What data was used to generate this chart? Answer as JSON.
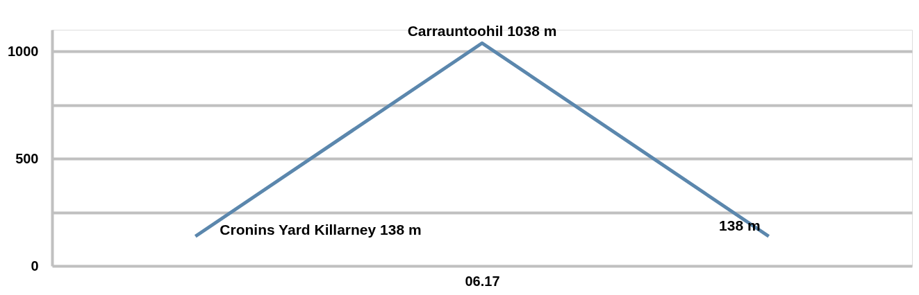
{
  "chart_data": {
    "type": "line",
    "categories": [
      null,
      "06.17",
      null
    ],
    "series": [
      {
        "color": "#5b87ad",
        "values": [
          138,
          1038,
          138
        ],
        "value_labels": [
          "Cronins Yard Killarney 138 m",
          "Carrauntoohil 1038 m",
          "138 m"
        ]
      }
    ],
    "ylim": [
      0,
      1100
    ],
    "yticks": [
      0,
      {
        "value": 250,
        "label": null
      },
      500,
      {
        "value": 750,
        "label": null
      },
      1000
    ],
    "grid": "y",
    "marker": "none",
    "line_style": "solid"
  }
}
